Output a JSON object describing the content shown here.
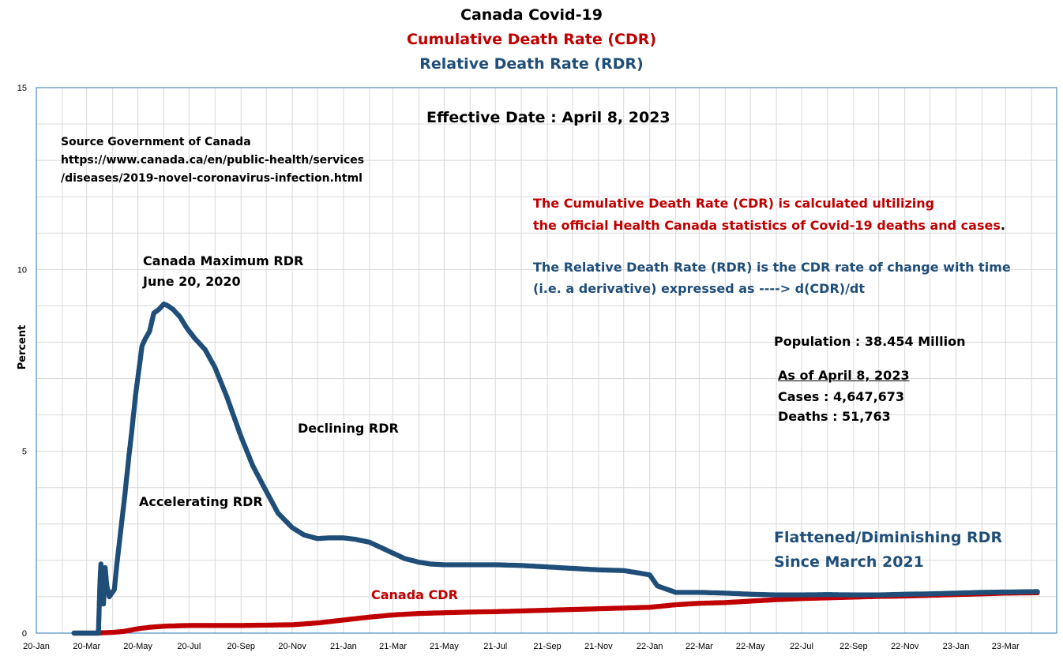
{
  "titles": {
    "line1": "Canada Covid-19",
    "line2": "Cumulative Death Rate (CDR)",
    "line3": "Relative Death Rate (RDR)"
  },
  "annotations": {
    "effective_date": "Effective Date : April 8, 2023",
    "source_line1": "Source Government of Canada",
    "source_line2": "https://www.canada.ca/en/public-health/services",
    "source_line3": "/diseases/2019-novel-coronavirus-infection.html",
    "cdr_note_line1": "The Cumulative Death Rate (CDR) is calculated ultilizing",
    "cdr_note_line2": "the official Health Canada statistics of Covid-19 deaths and cases",
    "cdr_note_period": ".",
    "rdr_note_line1": "The Relative Death Rate (RDR) is the CDR rate of change with time",
    "rdr_note_line2": "(i.e. a derivative) expressed as ---->  d(CDR)/dt",
    "population": "Population : 38.454 Million",
    "as_of": "As of April 8, 2023",
    "cases": "Cases : 4,647,673",
    "deaths": "Deaths : 51,763",
    "max_rdr_line1": "Canada Maximum RDR",
    "max_rdr_line2": "June 20, 2020",
    "accelerating": "Accelerating RDR",
    "declining": "Declining RDR",
    "flattened_line1": "Flattened/Diminishing RDR",
    "flattened_line2": "Since March 2021",
    "cdr_label": "Canada CDR"
  },
  "colors": {
    "rdr": "#1f4e79",
    "cdr": "#c00000",
    "rdr_text": "#1f4e79",
    "cdr_text": "#c00000",
    "grid": "#d9d9d9",
    "axis": "#2e75b6"
  },
  "chart_data": {
    "type": "line",
    "xlabel": "",
    "ylabel": "Percent",
    "ylim": [
      0,
      15
    ],
    "yticks": [
      0,
      5,
      10,
      15
    ],
    "grid": true,
    "x_tick_labels": [
      "20-Jan",
      "20-Mar",
      "20-May",
      "20-Jul",
      "20-Sep",
      "20-Nov",
      "21-Jan",
      "21-Mar",
      "21-May",
      "21-Jul",
      "21-Sep",
      "21-Nov",
      "22-Jan",
      "22-Mar",
      "22-May",
      "22-Jul",
      "22-Sep",
      "22-Nov",
      "23-Jan",
      "23-Mar"
    ],
    "series": [
      {
        "name": "RDR",
        "x": [
          "2020-02-15",
          "2020-02-20",
          "2020-02-25",
          "2020-03-01",
          "2020-03-05",
          "2020-03-10",
          "2020-03-15",
          "2020-03-17",
          "2020-03-18",
          "2020-03-19",
          "2020-03-20",
          "2020-03-21",
          "2020-03-23",
          "2020-03-25",
          "2020-03-28",
          "2020-03-31",
          "2020-04-03",
          "2020-04-06",
          "2020-04-09",
          "2020-04-12",
          "2020-04-16",
          "2020-04-20",
          "2020-04-24",
          "2020-04-28",
          "2020-05-02",
          "2020-05-06",
          "2020-05-10",
          "2020-05-15",
          "2020-05-20",
          "2020-05-26",
          "2020-06-01",
          "2020-06-06",
          "2020-06-12",
          "2020-06-20",
          "2020-06-28",
          "2020-07-08",
          "2020-07-20",
          "2020-08-01",
          "2020-08-15",
          "2020-09-01",
          "2020-09-15",
          "2020-10-01",
          "2020-10-15",
          "2020-11-01",
          "2020-11-15",
          "2020-12-01",
          "2020-12-15",
          "2021-01-01",
          "2021-01-15",
          "2021-02-01",
          "2021-02-15",
          "2021-03-01",
          "2021-03-15",
          "2021-04-01",
          "2021-04-15",
          "2021-05-01",
          "2021-05-15",
          "2021-06-01",
          "2021-07-01",
          "2021-08-01",
          "2021-09-01",
          "2021-10-01",
          "2021-11-01",
          "2021-12-01",
          "2021-12-20",
          "2022-01-01",
          "2022-01-10",
          "2022-02-01",
          "2022-03-01",
          "2022-04-01",
          "2022-05-01",
          "2022-06-01",
          "2022-07-01",
          "2022-08-01",
          "2022-09-01",
          "2022-10-01",
          "2022-11-01",
          "2022-12-01",
          "2023-01-01",
          "2023-02-01",
          "2023-03-01",
          "2023-04-08"
        ],
        "y": [
          0,
          0,
          0,
          0,
          0,
          0,
          0,
          1.5,
          1.9,
          1.3,
          1.6,
          0.8,
          1.8,
          1.3,
          1.0,
          1.1,
          1.2,
          1.9,
          2.5,
          3.1,
          3.9,
          4.8,
          5.6,
          6.5,
          7.2,
          7.9,
          8.1,
          8.3,
          8.8,
          8.9,
          9.05,
          9.0,
          8.9,
          8.7,
          8.4,
          8.1,
          7.8,
          7.3,
          6.5,
          5.4,
          4.6,
          3.9,
          3.3,
          2.9,
          2.7,
          2.6,
          2.62,
          2.62,
          2.58,
          2.5,
          2.35,
          2.2,
          2.05,
          1.95,
          1.9,
          1.88,
          1.88,
          1.88,
          1.88,
          1.86,
          1.82,
          1.78,
          1.74,
          1.72,
          1.65,
          1.6,
          1.3,
          1.12,
          1.12,
          1.1,
          1.07,
          1.05,
          1.05,
          1.06,
          1.05,
          1.05,
          1.07,
          1.08,
          1.1,
          1.12,
          1.13,
          1.14
        ]
      },
      {
        "name": "Canada CDR",
        "x": [
          "2020-02-15",
          "2020-03-15",
          "2020-03-20",
          "2020-04-01",
          "2020-04-15",
          "2020-05-01",
          "2020-05-15",
          "2020-06-01",
          "2020-06-15",
          "2020-07-01",
          "2020-08-01",
          "2020-09-01",
          "2020-10-01",
          "2020-11-01",
          "2020-12-01",
          "2021-01-01",
          "2021-02-01",
          "2021-03-01",
          "2021-04-01",
          "2021-05-01",
          "2021-06-01",
          "2021-07-01",
          "2021-08-01",
          "2021-09-01",
          "2021-10-01",
          "2021-11-01",
          "2021-12-01",
          "2022-01-01",
          "2022-02-01",
          "2022-03-01",
          "2022-04-01",
          "2022-05-01",
          "2022-06-01",
          "2022-07-01",
          "2022-08-01",
          "2022-09-01",
          "2022-10-01",
          "2022-11-01",
          "2022-12-01",
          "2023-01-01",
          "2023-02-01",
          "2023-03-01",
          "2023-04-08"
        ],
        "y": [
          0,
          0,
          0.01,
          0.02,
          0.05,
          0.12,
          0.16,
          0.19,
          0.2,
          0.21,
          0.21,
          0.21,
          0.22,
          0.23,
          0.28,
          0.36,
          0.44,
          0.5,
          0.54,
          0.56,
          0.58,
          0.59,
          0.61,
          0.63,
          0.65,
          0.67,
          0.69,
          0.71,
          0.78,
          0.82,
          0.84,
          0.88,
          0.92,
          0.95,
          0.97,
          0.99,
          1.01,
          1.02,
          1.04,
          1.06,
          1.08,
          1.1,
          1.11
        ]
      }
    ]
  }
}
